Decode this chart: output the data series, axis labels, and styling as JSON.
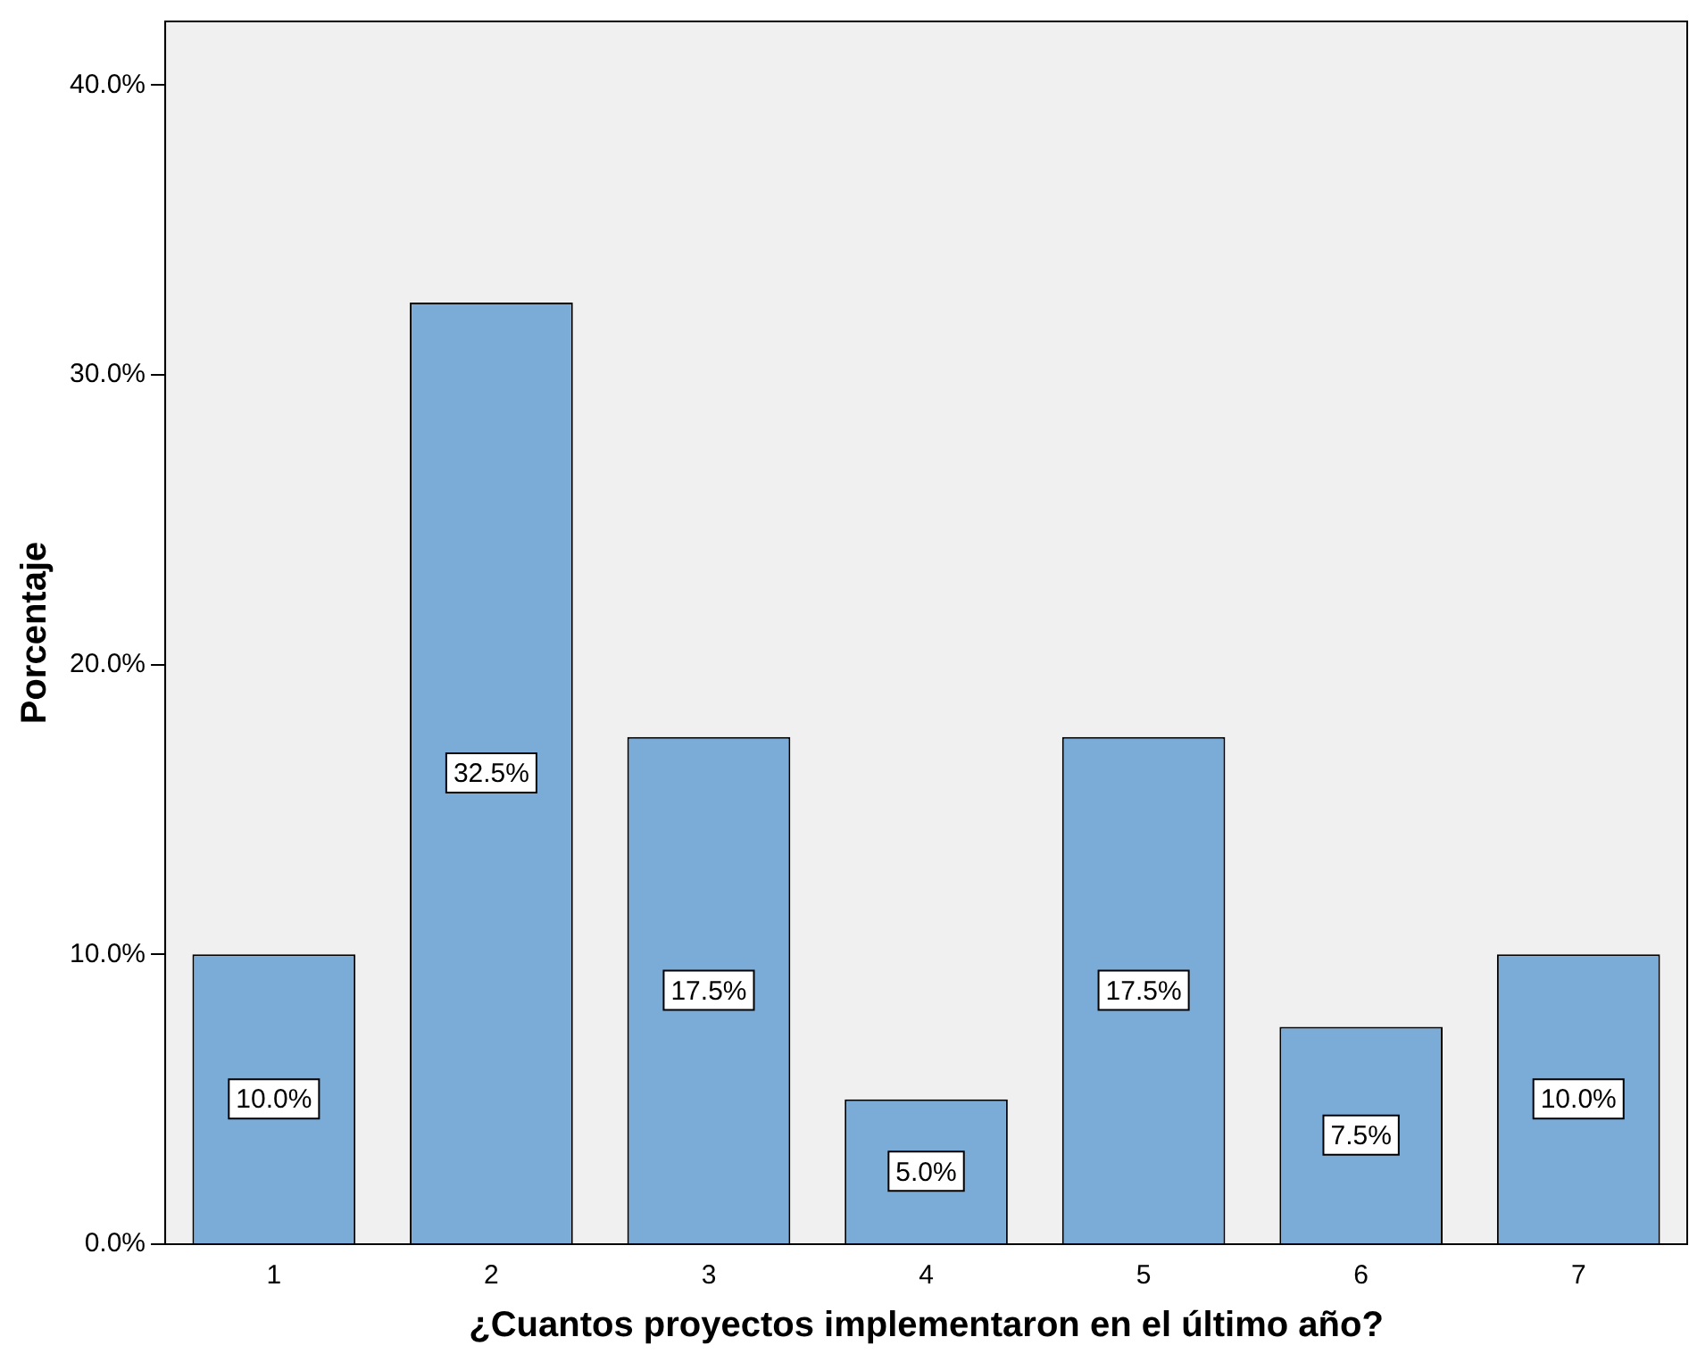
{
  "chart_data": {
    "type": "bar",
    "xlabel": "¿Cuantos proyectos implementaron en el último año?",
    "ylabel": "Porcentaje",
    "categories": [
      "1",
      "2",
      "3",
      "4",
      "5",
      "6",
      "7"
    ],
    "values": [
      10.0,
      32.5,
      17.5,
      5.0,
      17.5,
      7.5,
      10.0
    ],
    "value_labels": [
      "10.0%",
      "32.5%",
      "17.5%",
      "5.0%",
      "17.5%",
      "7.5%",
      "10.0%"
    ],
    "color": "#7bacd8",
    "ylim": [
      0,
      42.2
    ],
    "yticks": [
      {
        "value": 0,
        "label": "0.0%"
      },
      {
        "value": 10,
        "label": "10.0%"
      },
      {
        "value": 20,
        "label": "20.0%"
      },
      {
        "value": 30,
        "label": "30.0%"
      },
      {
        "value": 40,
        "label": "40.0%"
      }
    ],
    "grid": false,
    "legend": false
  }
}
